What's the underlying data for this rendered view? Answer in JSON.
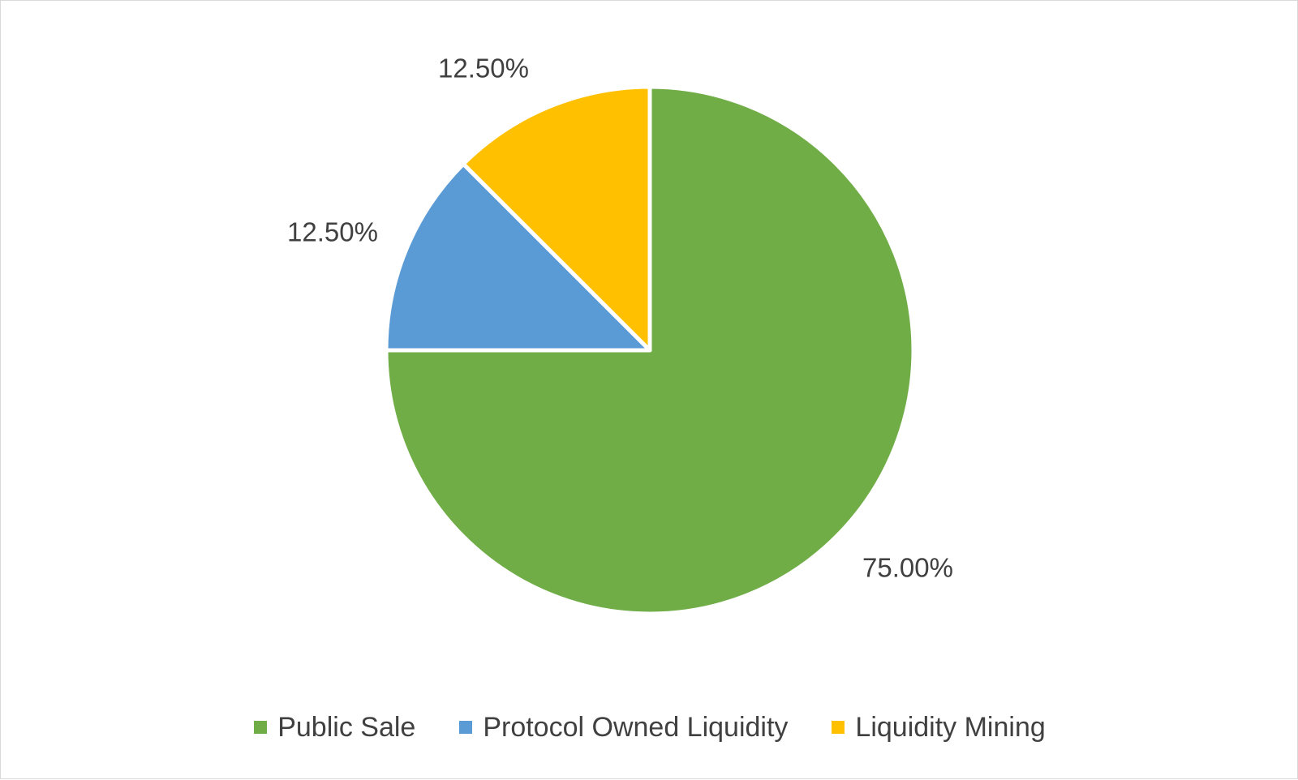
{
  "chart_data": {
    "type": "pie",
    "title": "",
    "categories": [
      "Public Sale",
      "Protocol Owned Liquidity",
      "Liquidity Mining"
    ],
    "values": [
      75.0,
      12.5,
      12.5
    ],
    "labels": [
      "75.00%",
      "12.50%",
      "12.50%"
    ],
    "colors": [
      "#70AD47",
      "#5B9BD5",
      "#FFC000"
    ],
    "legend_position": "bottom"
  }
}
